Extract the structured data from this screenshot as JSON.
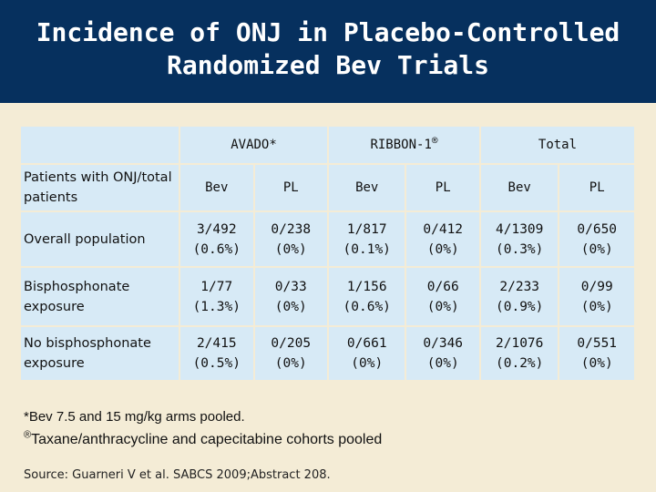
{
  "title": {
    "line1": "Incidence of ONJ in Placebo-Controlled",
    "line2": "Randomized Bev Trials"
  },
  "table": {
    "groups": {
      "avado": "AVADO*",
      "ribbon": "RIBBON-1",
      "ribbon_mark": "®",
      "total": "Total"
    },
    "subheader": {
      "label": "Patients with ONJ/total patients",
      "cols": [
        "Bev",
        "PL",
        "Bev",
        "PL",
        "Bev",
        "PL"
      ]
    },
    "rows": [
      {
        "label": "Overall population",
        "cells": [
          [
            "3/492",
            "(0.6%)"
          ],
          [
            "0/238",
            "(0%)"
          ],
          [
            "1/817",
            "(0.1%)"
          ],
          [
            "0/412",
            "(0%)"
          ],
          [
            "4/1309",
            "(0.3%)"
          ],
          [
            "0/650",
            "(0%)"
          ]
        ]
      },
      {
        "label": "Bisphosphonate exposure",
        "cells": [
          [
            "1/77",
            "(1.3%)"
          ],
          [
            "0/33",
            "(0%)"
          ],
          [
            "1/156",
            "(0.6%)"
          ],
          [
            "0/66",
            "(0%)"
          ],
          [
            "2/233",
            "(0.9%)"
          ],
          [
            "0/99",
            "(0%)"
          ]
        ]
      },
      {
        "label": "No bisphosphonate exposure",
        "cells": [
          [
            "2/415",
            "(0.5%)"
          ],
          [
            "0/205",
            "(0%)"
          ],
          [
            "0/661",
            "(0%)"
          ],
          [
            "0/346",
            "(0%)"
          ],
          [
            "2/1076",
            "(0.2%)"
          ],
          [
            "0/551",
            "(0%)"
          ]
        ]
      }
    ]
  },
  "footnotes": {
    "note1": "*Bev 7.5 and 15 mg/kg arms pooled.",
    "note2_mark": "®",
    "note2": "Taxane/anthracycline and capecitabine cohorts pooled"
  },
  "source": "Source: Guarneri V et al. SABCS 2009;Abstract 208."
}
